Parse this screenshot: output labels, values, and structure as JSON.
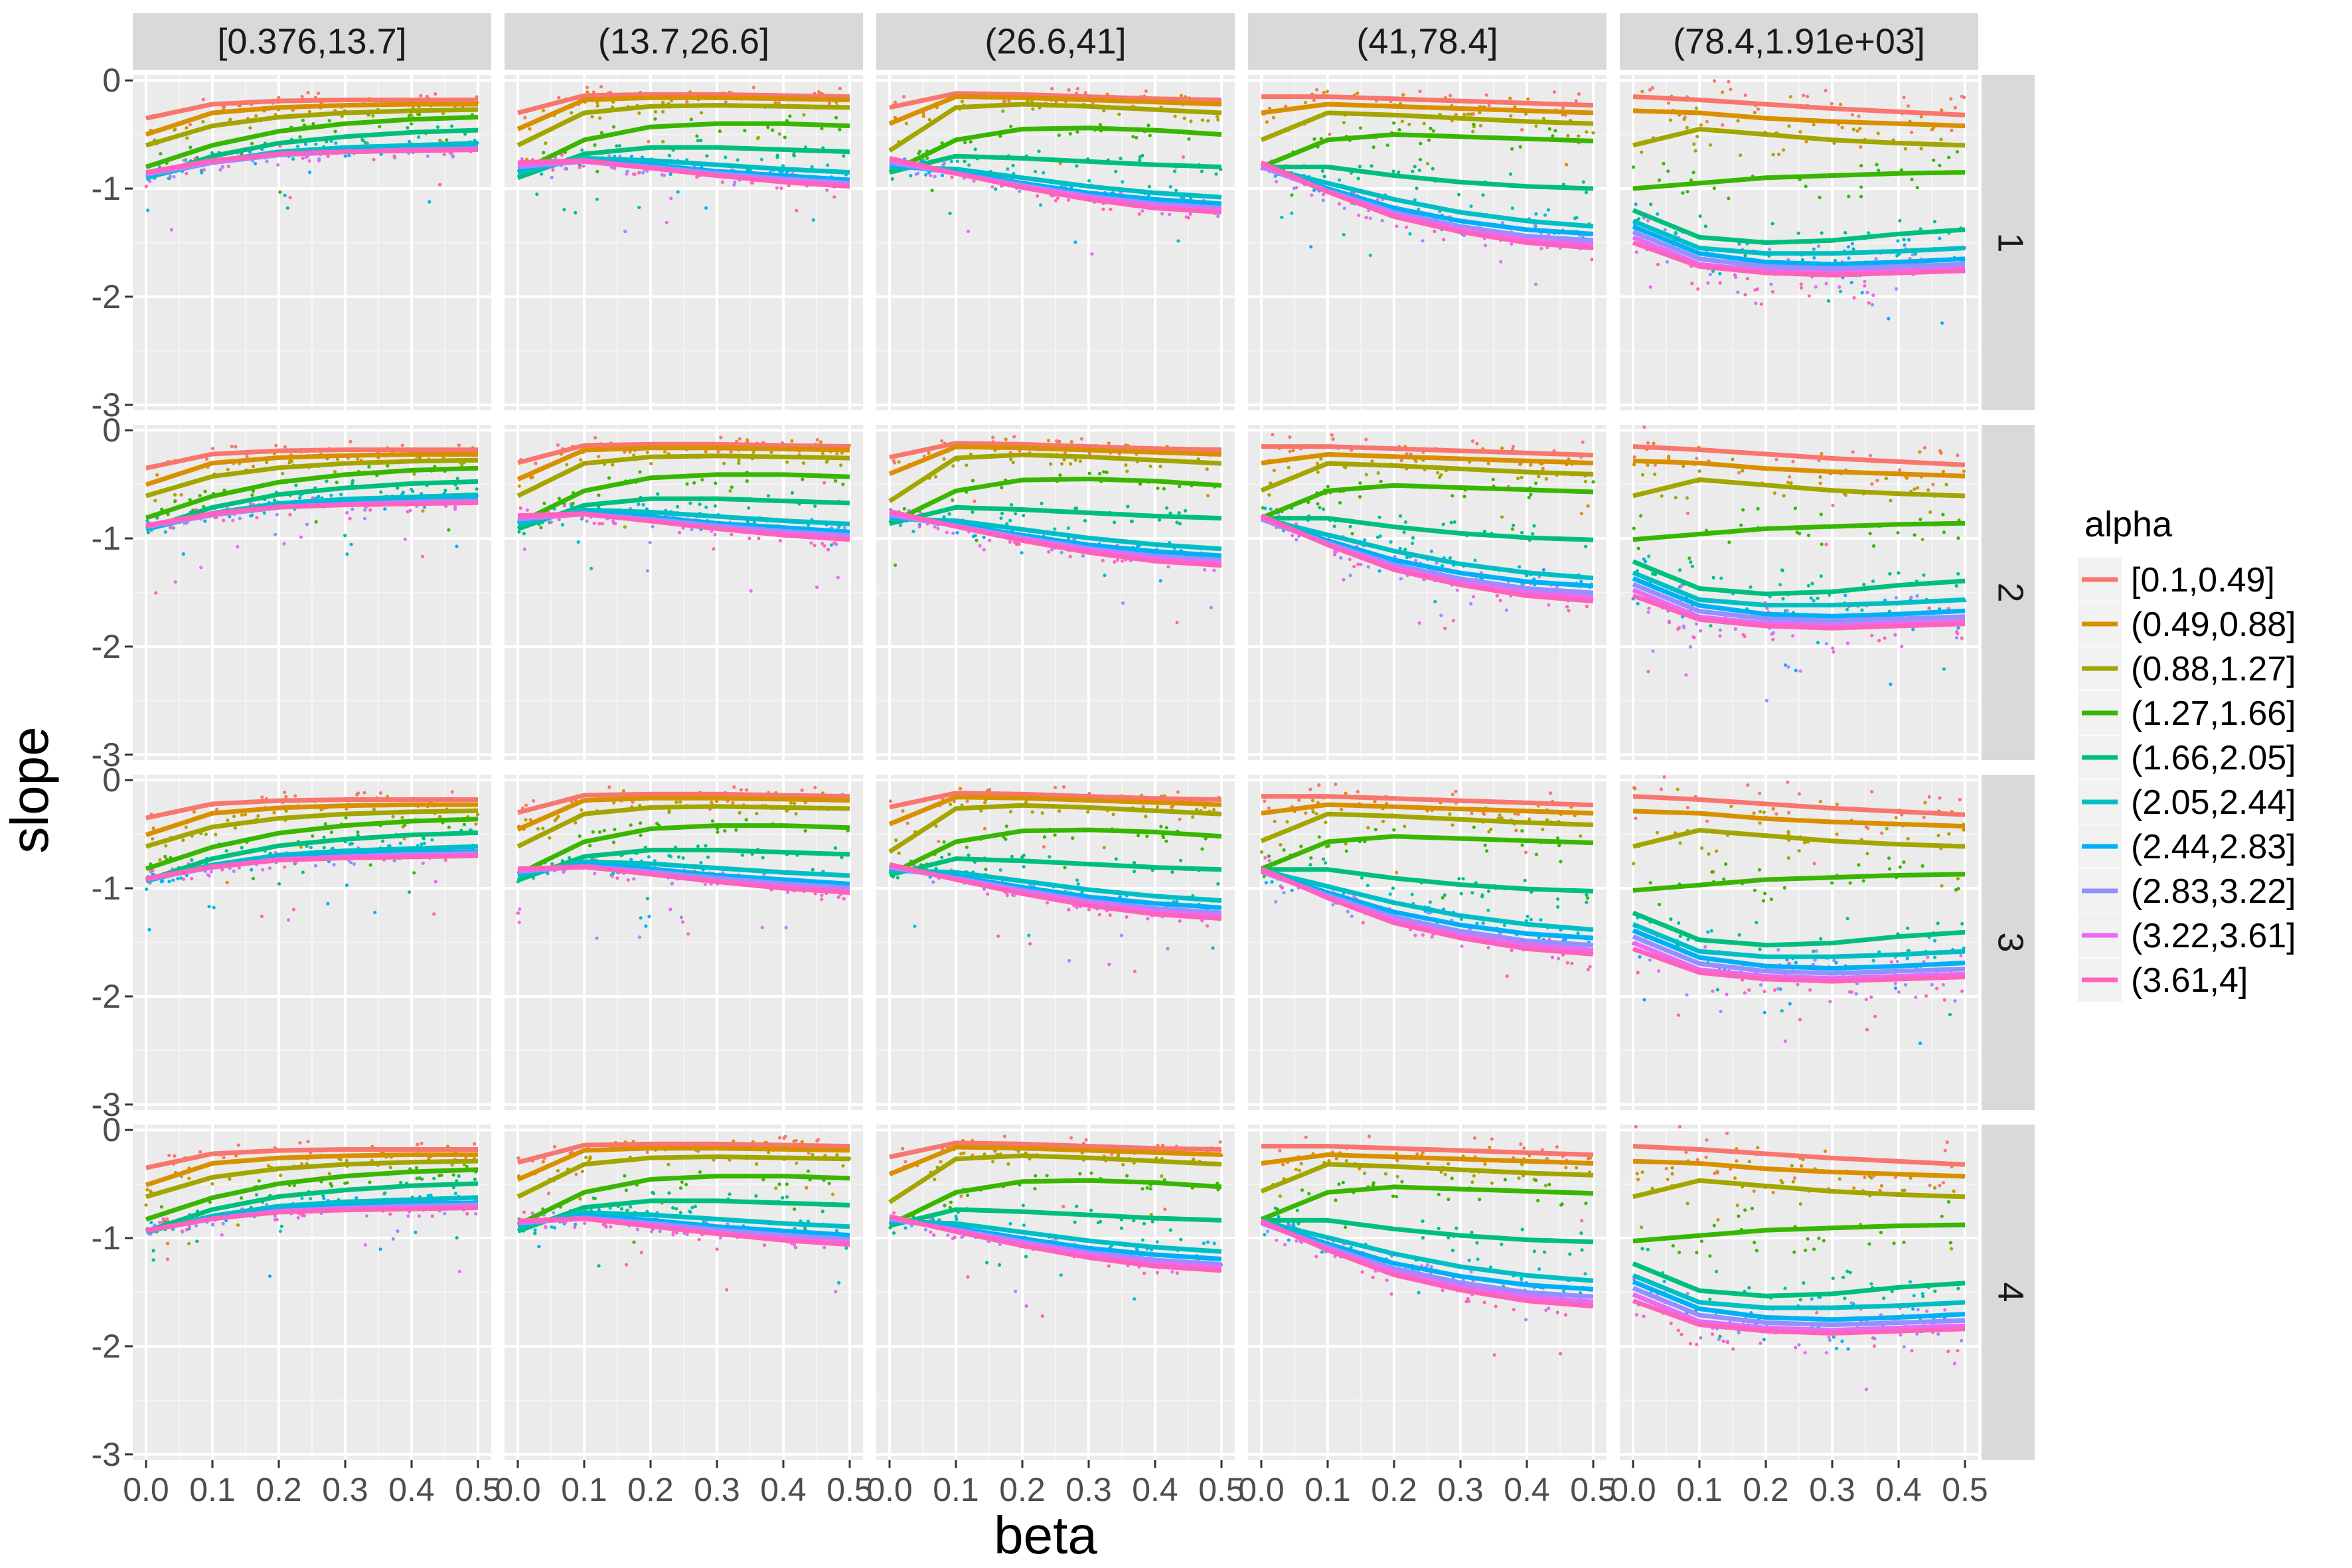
{
  "chart_data": {
    "type": "scatter",
    "subtype": "faceted scatter with smoothed trend lines",
    "xlabel": "beta",
    "ylabel": "slope",
    "xlim": [
      0,
      0.5
    ],
    "ylim": [
      -3,
      0
    ],
    "xticks": [
      "0.0",
      "0.1",
      "0.2",
      "0.3",
      "0.4",
      "0.5"
    ],
    "xtick_values": [
      0,
      0.1,
      0.2,
      0.3,
      0.4,
      0.5
    ],
    "yticks": [
      "0",
      "-1",
      "-2",
      "-3"
    ],
    "ytick_values": [
      0,
      -1,
      -2,
      -3
    ],
    "grid": true,
    "col_facets": [
      "[0.376,13.7]",
      "(13.7,26.6]",
      "(26.6,41]",
      "(41,78.4]",
      "(78.4,1.91e+03]"
    ],
    "row_facets": [
      "1",
      "2",
      "3",
      "4"
    ],
    "legend": {
      "title": "alpha",
      "position": "right",
      "entries": [
        "[0.1,0.49]",
        "(0.49,0.88]",
        "(0.88,1.27]",
        "(1.27,1.66]",
        "(1.66,2.05]",
        "(2.05,2.44]",
        "(2.44,2.83]",
        "(2.83,3.22]",
        "(3.22,3.61]",
        "(3.61,4]"
      ]
    },
    "series_colors": [
      "#F8766D",
      "#D89000",
      "#A3A500",
      "#39B600",
      "#00BF7D",
      "#00BFC4",
      "#00B0F6",
      "#9590FF",
      "#E76BF3",
      "#FF62BC"
    ],
    "series": [
      {
        "name": "[0.1,0.49]",
        "x": [
          0,
          0.1,
          0.2,
          0.3,
          0.4,
          0.5
        ],
        "col_curves": [
          [
            -0.35,
            -0.22,
            -0.19,
            -0.18,
            -0.18,
            -0.18
          ],
          [
            -0.3,
            -0.14,
            -0.13,
            -0.13,
            -0.14,
            -0.15
          ],
          [
            -0.25,
            -0.12,
            -0.13,
            -0.15,
            -0.17,
            -0.18
          ],
          [
            -0.15,
            -0.15,
            -0.17,
            -0.19,
            -0.21,
            -0.23
          ],
          [
            -0.15,
            -0.18,
            -0.22,
            -0.26,
            -0.29,
            -0.32
          ]
        ]
      },
      {
        "name": "(0.49,0.88]",
        "x": [
          0,
          0.1,
          0.2,
          0.3,
          0.4,
          0.5
        ],
        "col_curves": [
          [
            -0.5,
            -0.3,
            -0.25,
            -0.23,
            -0.22,
            -0.22
          ],
          [
            -0.45,
            -0.18,
            -0.16,
            -0.16,
            -0.17,
            -0.18
          ],
          [
            -0.4,
            -0.15,
            -0.16,
            -0.18,
            -0.2,
            -0.22
          ],
          [
            -0.3,
            -0.22,
            -0.24,
            -0.26,
            -0.28,
            -0.3
          ],
          [
            -0.28,
            -0.3,
            -0.35,
            -0.38,
            -0.4,
            -0.42
          ]
        ]
      },
      {
        "name": "(0.88,1.27]",
        "x": [
          0,
          0.1,
          0.2,
          0.3,
          0.4,
          0.5
        ],
        "col_curves": [
          [
            -0.6,
            -0.42,
            -0.34,
            -0.3,
            -0.28,
            -0.27
          ],
          [
            -0.6,
            -0.3,
            -0.24,
            -0.23,
            -0.24,
            -0.25
          ],
          [
            -0.65,
            -0.25,
            -0.22,
            -0.24,
            -0.27,
            -0.3
          ],
          [
            -0.55,
            -0.3,
            -0.32,
            -0.35,
            -0.38,
            -0.4
          ],
          [
            -0.6,
            -0.45,
            -0.5,
            -0.55,
            -0.58,
            -0.6
          ]
        ]
      },
      {
        "name": "(1.27,1.66]",
        "x": [
          0,
          0.1,
          0.2,
          0.3,
          0.4,
          0.5
        ],
        "col_curves": [
          [
            -0.8,
            -0.6,
            -0.47,
            -0.4,
            -0.36,
            -0.34
          ],
          [
            -0.85,
            -0.55,
            -0.43,
            -0.4,
            -0.4,
            -0.42
          ],
          [
            -0.85,
            -0.55,
            -0.45,
            -0.44,
            -0.46,
            -0.5
          ],
          [
            -0.8,
            -0.55,
            -0.5,
            -0.52,
            -0.54,
            -0.56
          ],
          [
            -1.0,
            -0.95,
            -0.9,
            -0.88,
            -0.86,
            -0.85
          ]
        ]
      },
      {
        "name": "(1.66,2.05]",
        "x": [
          0,
          0.1,
          0.2,
          0.3,
          0.4,
          0.5
        ],
        "col_curves": [
          [
            -0.9,
            -0.7,
            -0.58,
            -0.52,
            -0.48,
            -0.46
          ],
          [
            -0.9,
            -0.68,
            -0.62,
            -0.62,
            -0.64,
            -0.66
          ],
          [
            -0.85,
            -0.7,
            -0.72,
            -0.75,
            -0.78,
            -0.8
          ],
          [
            -0.8,
            -0.8,
            -0.88,
            -0.94,
            -0.98,
            -1.0
          ],
          [
            -1.2,
            -1.45,
            -1.5,
            -1.48,
            -1.42,
            -1.38
          ]
        ]
      },
      {
        "name": "(2.05,2.44]",
        "x": [
          0,
          0.1,
          0.2,
          0.3,
          0.4,
          0.5
        ],
        "col_curves": [
          [
            -0.9,
            -0.75,
            -0.66,
            -0.62,
            -0.6,
            -0.58
          ],
          [
            -0.85,
            -0.72,
            -0.74,
            -0.78,
            -0.82,
            -0.85
          ],
          [
            -0.8,
            -0.82,
            -0.9,
            -0.98,
            -1.04,
            -1.08
          ],
          [
            -0.8,
            -0.95,
            -1.1,
            -1.22,
            -1.3,
            -1.35
          ],
          [
            -1.3,
            -1.55,
            -1.6,
            -1.6,
            -1.58,
            -1.55
          ]
        ]
      },
      {
        "name": "(2.44,2.83]",
        "x": [
          0,
          0.1,
          0.2,
          0.3,
          0.4,
          0.5
        ],
        "col_curves": [
          [
            -0.88,
            -0.76,
            -0.68,
            -0.65,
            -0.63,
            -0.62
          ],
          [
            -0.82,
            -0.74,
            -0.78,
            -0.84,
            -0.88,
            -0.92
          ],
          [
            -0.78,
            -0.85,
            -0.95,
            -1.04,
            -1.1,
            -1.14
          ],
          [
            -0.8,
            -1.0,
            -1.18,
            -1.3,
            -1.38,
            -1.42
          ],
          [
            -1.35,
            -1.6,
            -1.68,
            -1.7,
            -1.68,
            -1.65
          ]
        ]
      },
      {
        "name": "(2.83,3.22]",
        "x": [
          0,
          0.1,
          0.2,
          0.3,
          0.4,
          0.5
        ],
        "col_curves": [
          [
            -0.87,
            -0.76,
            -0.69,
            -0.66,
            -0.64,
            -0.63
          ],
          [
            -0.8,
            -0.75,
            -0.8,
            -0.86,
            -0.91,
            -0.95
          ],
          [
            -0.76,
            -0.86,
            -0.97,
            -1.07,
            -1.14,
            -1.18
          ],
          [
            -0.8,
            -1.02,
            -1.22,
            -1.35,
            -1.44,
            -1.48
          ],
          [
            -1.4,
            -1.65,
            -1.72,
            -1.74,
            -1.72,
            -1.7
          ]
        ]
      },
      {
        "name": "(3.22,3.61]",
        "x": [
          0,
          0.1,
          0.2,
          0.3,
          0.4,
          0.5
        ],
        "col_curves": [
          [
            -0.86,
            -0.75,
            -0.68,
            -0.66,
            -0.65,
            -0.64
          ],
          [
            -0.78,
            -0.75,
            -0.81,
            -0.88,
            -0.93,
            -0.97
          ],
          [
            -0.74,
            -0.86,
            -0.98,
            -1.08,
            -1.16,
            -1.2
          ],
          [
            -0.78,
            -1.03,
            -1.24,
            -1.38,
            -1.47,
            -1.52
          ],
          [
            -1.45,
            -1.7,
            -1.76,
            -1.78,
            -1.76,
            -1.74
          ]
        ]
      },
      {
        "name": "(3.61,4]",
        "x": [
          0,
          0.1,
          0.2,
          0.3,
          0.4,
          0.5
        ],
        "col_curves": [
          [
            -0.85,
            -0.74,
            -0.68,
            -0.66,
            -0.65,
            -0.64
          ],
          [
            -0.76,
            -0.74,
            -0.81,
            -0.88,
            -0.94,
            -0.98
          ],
          [
            -0.72,
            -0.86,
            -0.99,
            -1.1,
            -1.18,
            -1.22
          ],
          [
            -0.76,
            -1.03,
            -1.26,
            -1.4,
            -1.5,
            -1.55
          ],
          [
            -1.5,
            -1.72,
            -1.78,
            -1.8,
            -1.78,
            -1.76
          ]
        ]
      }
    ],
    "row_offsets": [
      0,
      0.03,
      0.06,
      0.08
    ]
  }
}
